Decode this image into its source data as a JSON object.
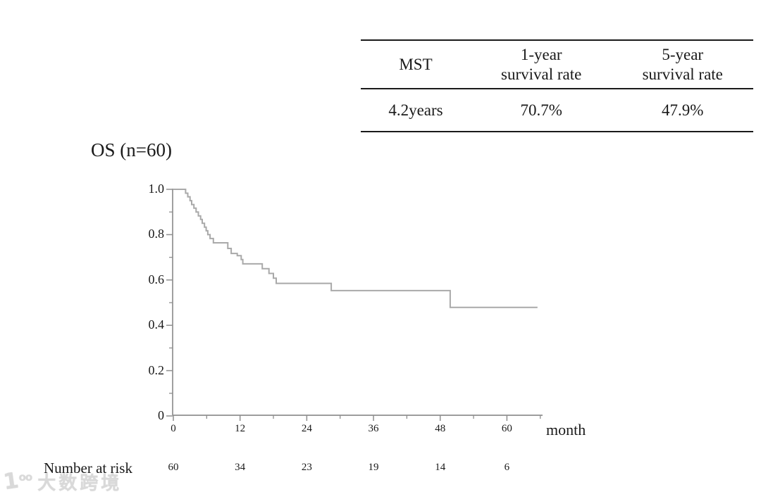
{
  "summary_table": {
    "columns": [
      {
        "lines": [
          "MST"
        ]
      },
      {
        "lines": [
          "1-year",
          "survival rate"
        ]
      },
      {
        "lines": [
          "5-year",
          "survival rate"
        ]
      }
    ],
    "values": [
      "4.2years",
      "70.7%",
      "47.9%"
    ]
  },
  "chart_data": {
    "type": "line",
    "subtype": "kaplan-meier-step",
    "title": "OS (n=60)",
    "xlabel": "month",
    "ylabel": "",
    "xlim": [
      0,
      66
    ],
    "ylim": [
      0,
      1.0
    ],
    "grid": false,
    "legend": "none",
    "x_axis": {
      "major_ticks": [
        {
          "t": 0,
          "label": "0"
        },
        {
          "t": 12,
          "label": "12"
        },
        {
          "t": 24,
          "label": "24"
        },
        {
          "t": 36,
          "label": "36"
        },
        {
          "t": 48,
          "label": "48"
        },
        {
          "t": 60,
          "label": "60"
        }
      ],
      "minor_ticks": [
        6,
        18,
        30,
        42,
        54,
        66
      ]
    },
    "y_axis": {
      "major_ticks": [
        {
          "v": 1.0,
          "label": "1.0"
        },
        {
          "v": 0.8,
          "label": "0.8"
        },
        {
          "v": 0.6,
          "label": "0.6"
        },
        {
          "v": 0.4,
          "label": "0.4"
        },
        {
          "v": 0.2,
          "label": "0.2"
        },
        {
          "v": 0.0,
          "label": "0"
        }
      ],
      "minor_ticks": [
        0.9,
        0.7,
        0.5,
        0.3,
        0.1
      ]
    },
    "series": [
      {
        "name": "OS",
        "color": "#a9a9a9",
        "steps": [
          [
            0,
            1.0
          ],
          [
            2.2,
            0.983
          ],
          [
            2.6,
            0.967
          ],
          [
            3.0,
            0.95
          ],
          [
            3.3,
            0.933
          ],
          [
            3.7,
            0.917
          ],
          [
            4.1,
            0.9
          ],
          [
            4.5,
            0.883
          ],
          [
            4.9,
            0.867
          ],
          [
            5.2,
            0.85
          ],
          [
            5.6,
            0.833
          ],
          [
            5.9,
            0.817
          ],
          [
            6.2,
            0.8
          ],
          [
            6.6,
            0.783
          ],
          [
            7.2,
            0.764
          ],
          [
            9.8,
            0.739
          ],
          [
            10.4,
            0.717
          ],
          [
            11.5,
            0.707
          ],
          [
            12.2,
            0.69
          ],
          [
            12.5,
            0.671
          ],
          [
            16.0,
            0.65
          ],
          [
            17.2,
            0.629
          ],
          [
            18.0,
            0.608
          ],
          [
            18.5,
            0.585
          ],
          [
            28.4,
            0.553
          ],
          [
            49.8,
            0.479
          ]
        ],
        "end_month": 65.5
      }
    ],
    "number_at_risk": {
      "label": "Number at risk",
      "values": [
        "60",
        "34",
        "23",
        "19",
        "14",
        "6"
      ]
    }
  },
  "watermark": {
    "logo_one": "1",
    "logo_oo": "oo",
    "text": "大数跨境"
  },
  "colors": {
    "axis": "#8f8f8f",
    "curve": "#a9a9a9",
    "text": "#1a1a1a",
    "table_rule": "#1a1a1a",
    "watermark": "#d9d9d9"
  }
}
